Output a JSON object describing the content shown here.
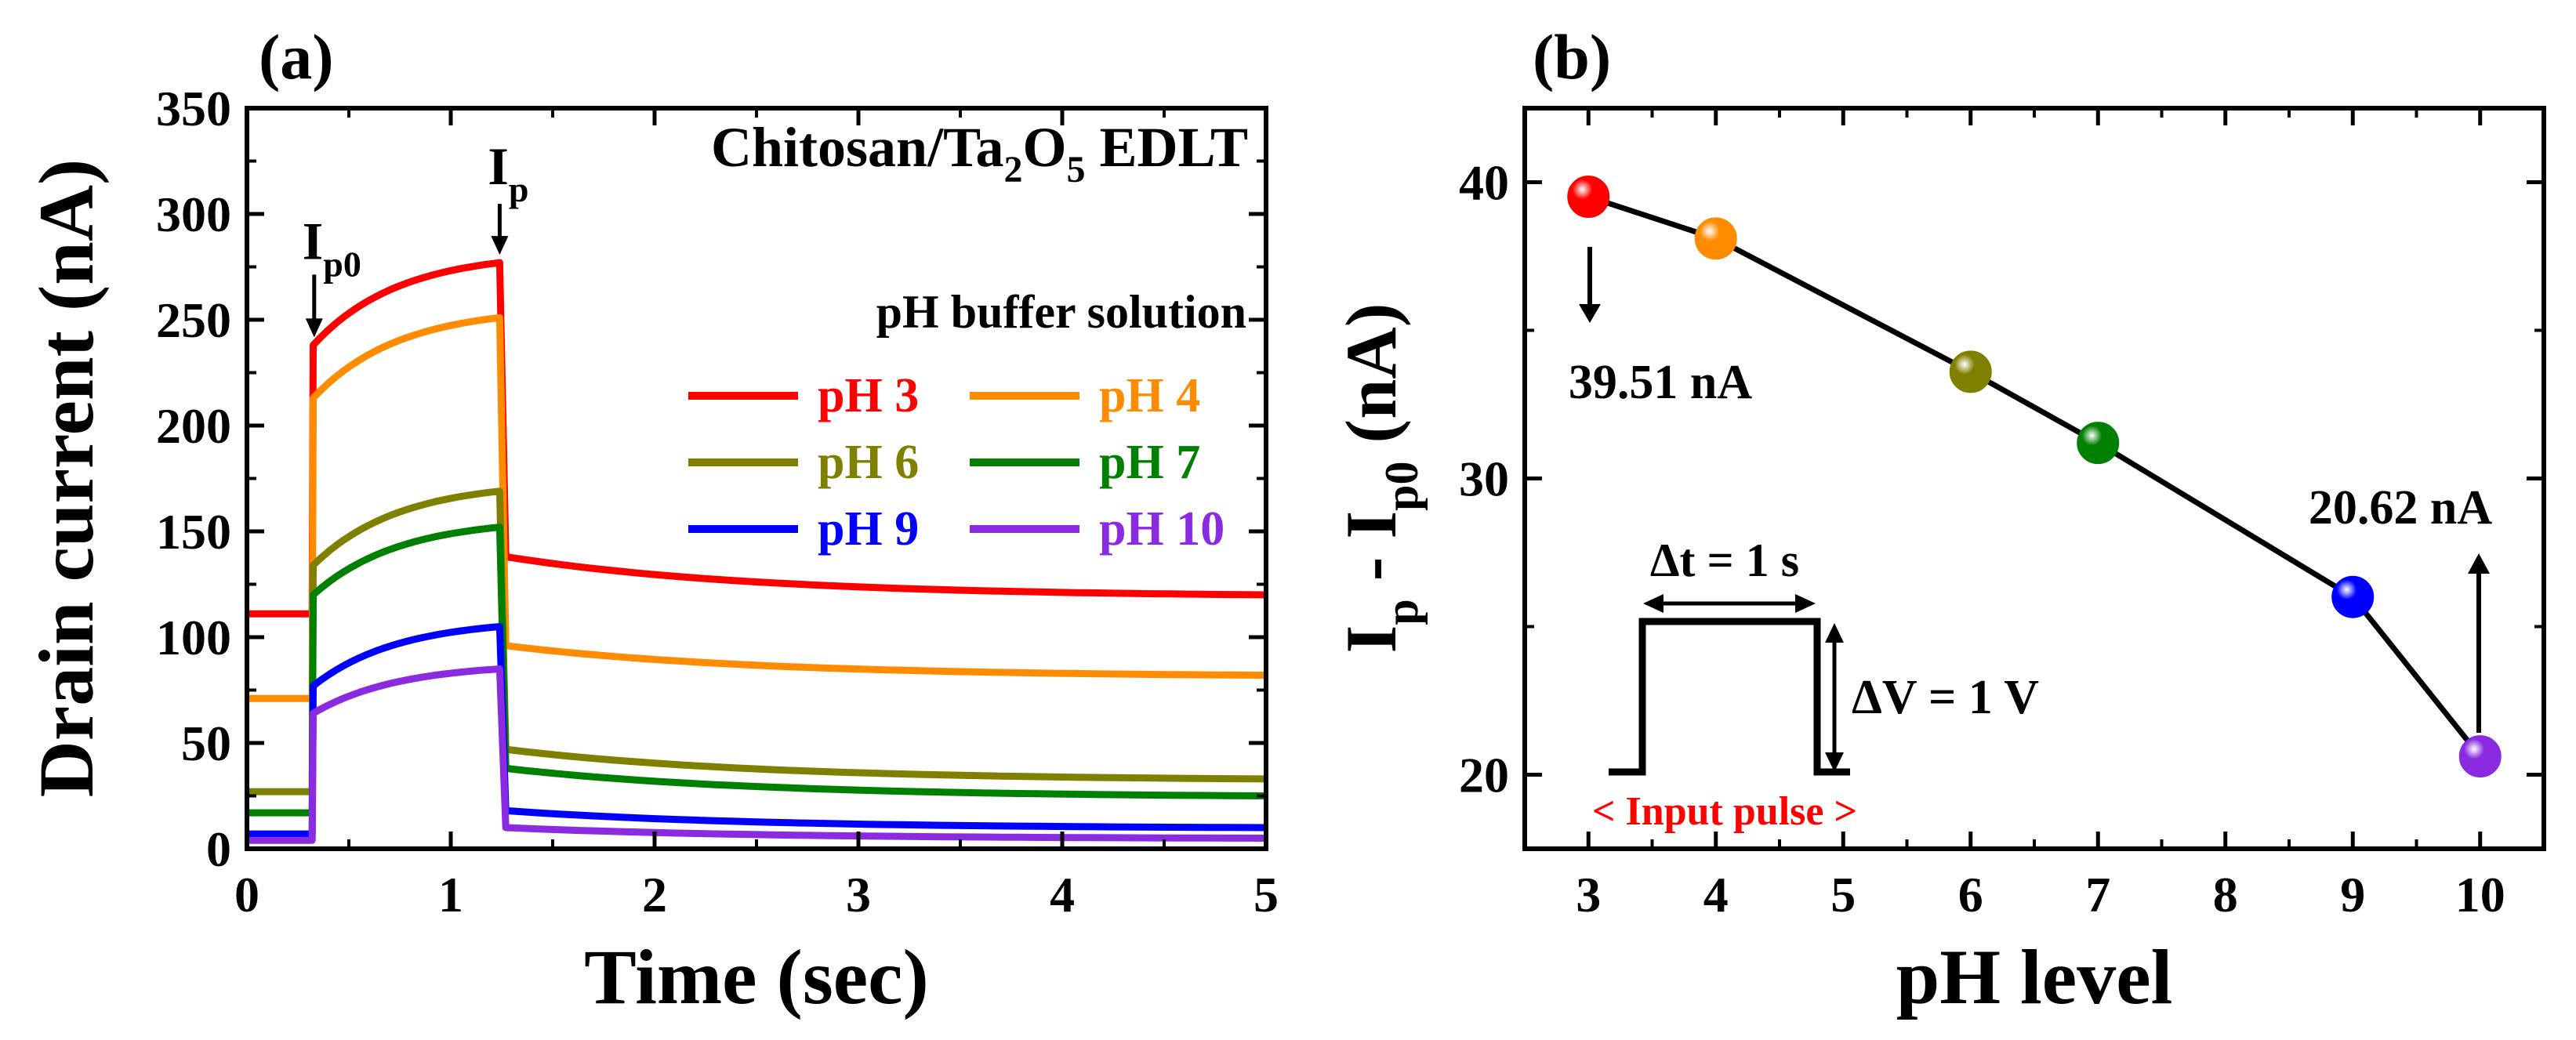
{
  "chart_data": [
    {
      "panel": "(a)",
      "type": "line",
      "title": "Chitosan/Ta2O5 EDLT",
      "title_parts": [
        "Chitosan/Ta",
        "2",
        "O",
        "5",
        " EDLT"
      ],
      "xlabel": "Time (sec)",
      "ylabel": "Drain current (nA)",
      "xlim": [
        0,
        5
      ],
      "ylim": [
        0,
        350
      ],
      "xticks": [
        0,
        1,
        2,
        3,
        4,
        5
      ],
      "yticks": [
        0,
        50,
        100,
        150,
        200,
        250,
        300,
        350
      ],
      "grid": false,
      "legend_title": "pH buffer solution",
      "legend_position": "right",
      "annotations": [
        {
          "id": "ip0",
          "text": "I",
          "sub": "p0",
          "at_time": 0.33
        },
        {
          "id": "ip",
          "text": "I",
          "sub": "p",
          "at_time": 1.24
        }
      ],
      "pulse": {
        "start": 0.32,
        "end": 1.24
      },
      "series": [
        {
          "name": "pH 3",
          "color": "#ff0000",
          "baseline": 111,
          "pulse_start": 238,
          "peak": 277,
          "after_start": 138,
          "end": 120
        },
        {
          "name": "pH 4",
          "color": "#ff8c00",
          "baseline": 71,
          "pulse_start": 213,
          "peak": 251,
          "after_start": 96,
          "end": 82
        },
        {
          "name": "pH 6",
          "color": "#808000",
          "baseline": 27,
          "pulse_start": 134,
          "peak": 169,
          "after_start": 47,
          "end": 33
        },
        {
          "name": "pH 7",
          "color": "#008000",
          "baseline": 17,
          "pulse_start": 120,
          "peak": 152,
          "after_start": 38,
          "end": 25
        },
        {
          "name": "pH 9",
          "color": "#0000ff",
          "baseline": 7,
          "pulse_start": 77,
          "peak": 105,
          "after_start": 18,
          "end": 10
        },
        {
          "name": "pH 10",
          "color": "#8a2be2",
          "baseline": 4,
          "pulse_start": 64,
          "peak": 85,
          "after_start": 10,
          "end": 5
        }
      ]
    },
    {
      "panel": "(b)",
      "type": "scatter",
      "xlabel": "pH level",
      "ylabel_parts": [
        "I",
        "p",
        " - I",
        "p0",
        " (nA)"
      ],
      "xlim": [
        2.5,
        10.5
      ],
      "ylim": [
        17.5,
        42.5
      ],
      "xticks": [
        3,
        4,
        5,
        6,
        7,
        8,
        9,
        10
      ],
      "yticks": [
        20,
        30,
        40
      ],
      "grid": false,
      "connected": true,
      "points": [
        {
          "x": 3,
          "y": 39.51,
          "color": "#ff0000"
        },
        {
          "x": 4,
          "y": 38.1,
          "color": "#ff8c00"
        },
        {
          "x": 6,
          "y": 33.6,
          "color": "#808000"
        },
        {
          "x": 7,
          "y": 31.2,
          "color": "#008000"
        },
        {
          "x": 9,
          "y": 26.0,
          "color": "#0000ff"
        },
        {
          "x": 10,
          "y": 20.62,
          "color": "#8a2be2"
        }
      ],
      "annotations": [
        {
          "id": "max",
          "text": "39.51 nA",
          "x": 3,
          "y": 39.51
        },
        {
          "id": "min",
          "text": "20.62 nA",
          "x": 10,
          "y": 20.62
        }
      ],
      "inset": {
        "dt_label": "Δt = 1 s",
        "dv_label": "ΔV = 1 V",
        "caption": "< Input pulse >",
        "caption_color": "#ff0000"
      }
    }
  ]
}
